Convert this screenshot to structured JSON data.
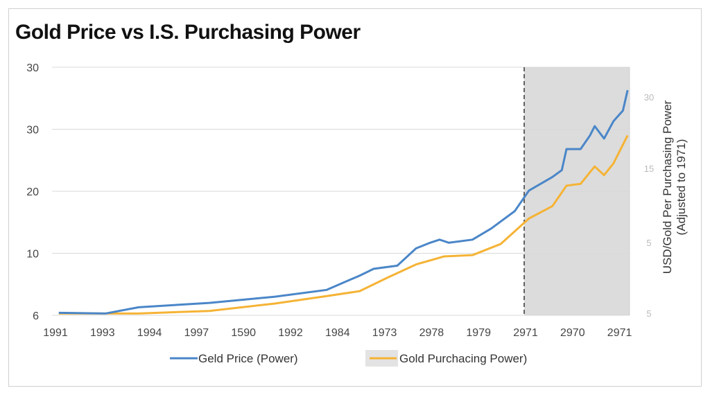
{
  "chart_data": {
    "type": "line",
    "title": "Gold Price vs I.S. Purchasing Power",
    "categories": [
      "1991",
      "1993",
      "1994",
      "1997",
      "1590",
      "1992",
      "1984",
      "1973",
      "2978",
      "1979",
      "2971",
      "2970",
      "2971"
    ],
    "ylim": [
      0,
      40
    ],
    "y_tick_labels": [
      "6",
      "10",
      "20",
      "30",
      "30"
    ],
    "y2_tick_labels": [
      "5",
      "5",
      "15",
      "30"
    ],
    "y2label": [
      "USD/Gold Per Purchasing Power",
      "(Adjusted to 1971)"
    ],
    "grid": true,
    "legend": "bottom",
    "shaded_region": {
      "from_category_index": 10,
      "to": "end",
      "color": "#dcdcdc"
    },
    "vline": {
      "category_index": 10,
      "style": "dashed"
    },
    "series": [
      {
        "name": "Geld Price (Power)",
        "color": "#4a86c8",
        "points": [
          [
            0.1,
            0.4
          ],
          [
            1.1,
            0.3
          ],
          [
            1.8,
            1.3
          ],
          [
            3.3,
            2.0
          ],
          [
            4.7,
            3.0
          ],
          [
            5.8,
            4.1
          ],
          [
            6.5,
            6.4
          ],
          [
            6.8,
            7.5
          ],
          [
            7.3,
            8.0
          ],
          [
            7.7,
            10.8
          ],
          [
            8.0,
            11.7
          ],
          [
            8.2,
            12.2
          ],
          [
            8.4,
            11.7
          ],
          [
            8.9,
            12.2
          ],
          [
            9.3,
            14.0
          ],
          [
            9.8,
            16.8
          ],
          [
            10.1,
            20.1
          ],
          [
            10.6,
            22.3
          ],
          [
            10.8,
            23.4
          ],
          [
            10.9,
            26.8
          ],
          [
            11.2,
            26.8
          ],
          [
            11.4,
            29.0
          ],
          [
            11.5,
            30.5
          ],
          [
            11.7,
            28.5
          ],
          [
            11.9,
            31.3
          ],
          [
            12.1,
            33.0
          ],
          [
            12.2,
            36.3
          ]
        ]
      },
      {
        "name": "Gold Purchacing Power)",
        "color": "#f5b335",
        "points": [
          [
            0.1,
            0.3
          ],
          [
            1.8,
            0.3
          ],
          [
            3.3,
            0.7
          ],
          [
            4.7,
            1.9
          ],
          [
            5.8,
            3.1
          ],
          [
            6.5,
            3.9
          ],
          [
            7.1,
            6.1
          ],
          [
            7.7,
            8.2
          ],
          [
            8.3,
            9.5
          ],
          [
            8.9,
            9.7
          ],
          [
            9.5,
            11.5
          ],
          [
            10.1,
            15.6
          ],
          [
            10.6,
            17.6
          ],
          [
            10.9,
            20.9
          ],
          [
            11.2,
            21.2
          ],
          [
            11.5,
            24.0
          ],
          [
            11.7,
            22.6
          ],
          [
            11.9,
            24.5
          ],
          [
            12.2,
            29.0
          ]
        ]
      }
    ]
  }
}
